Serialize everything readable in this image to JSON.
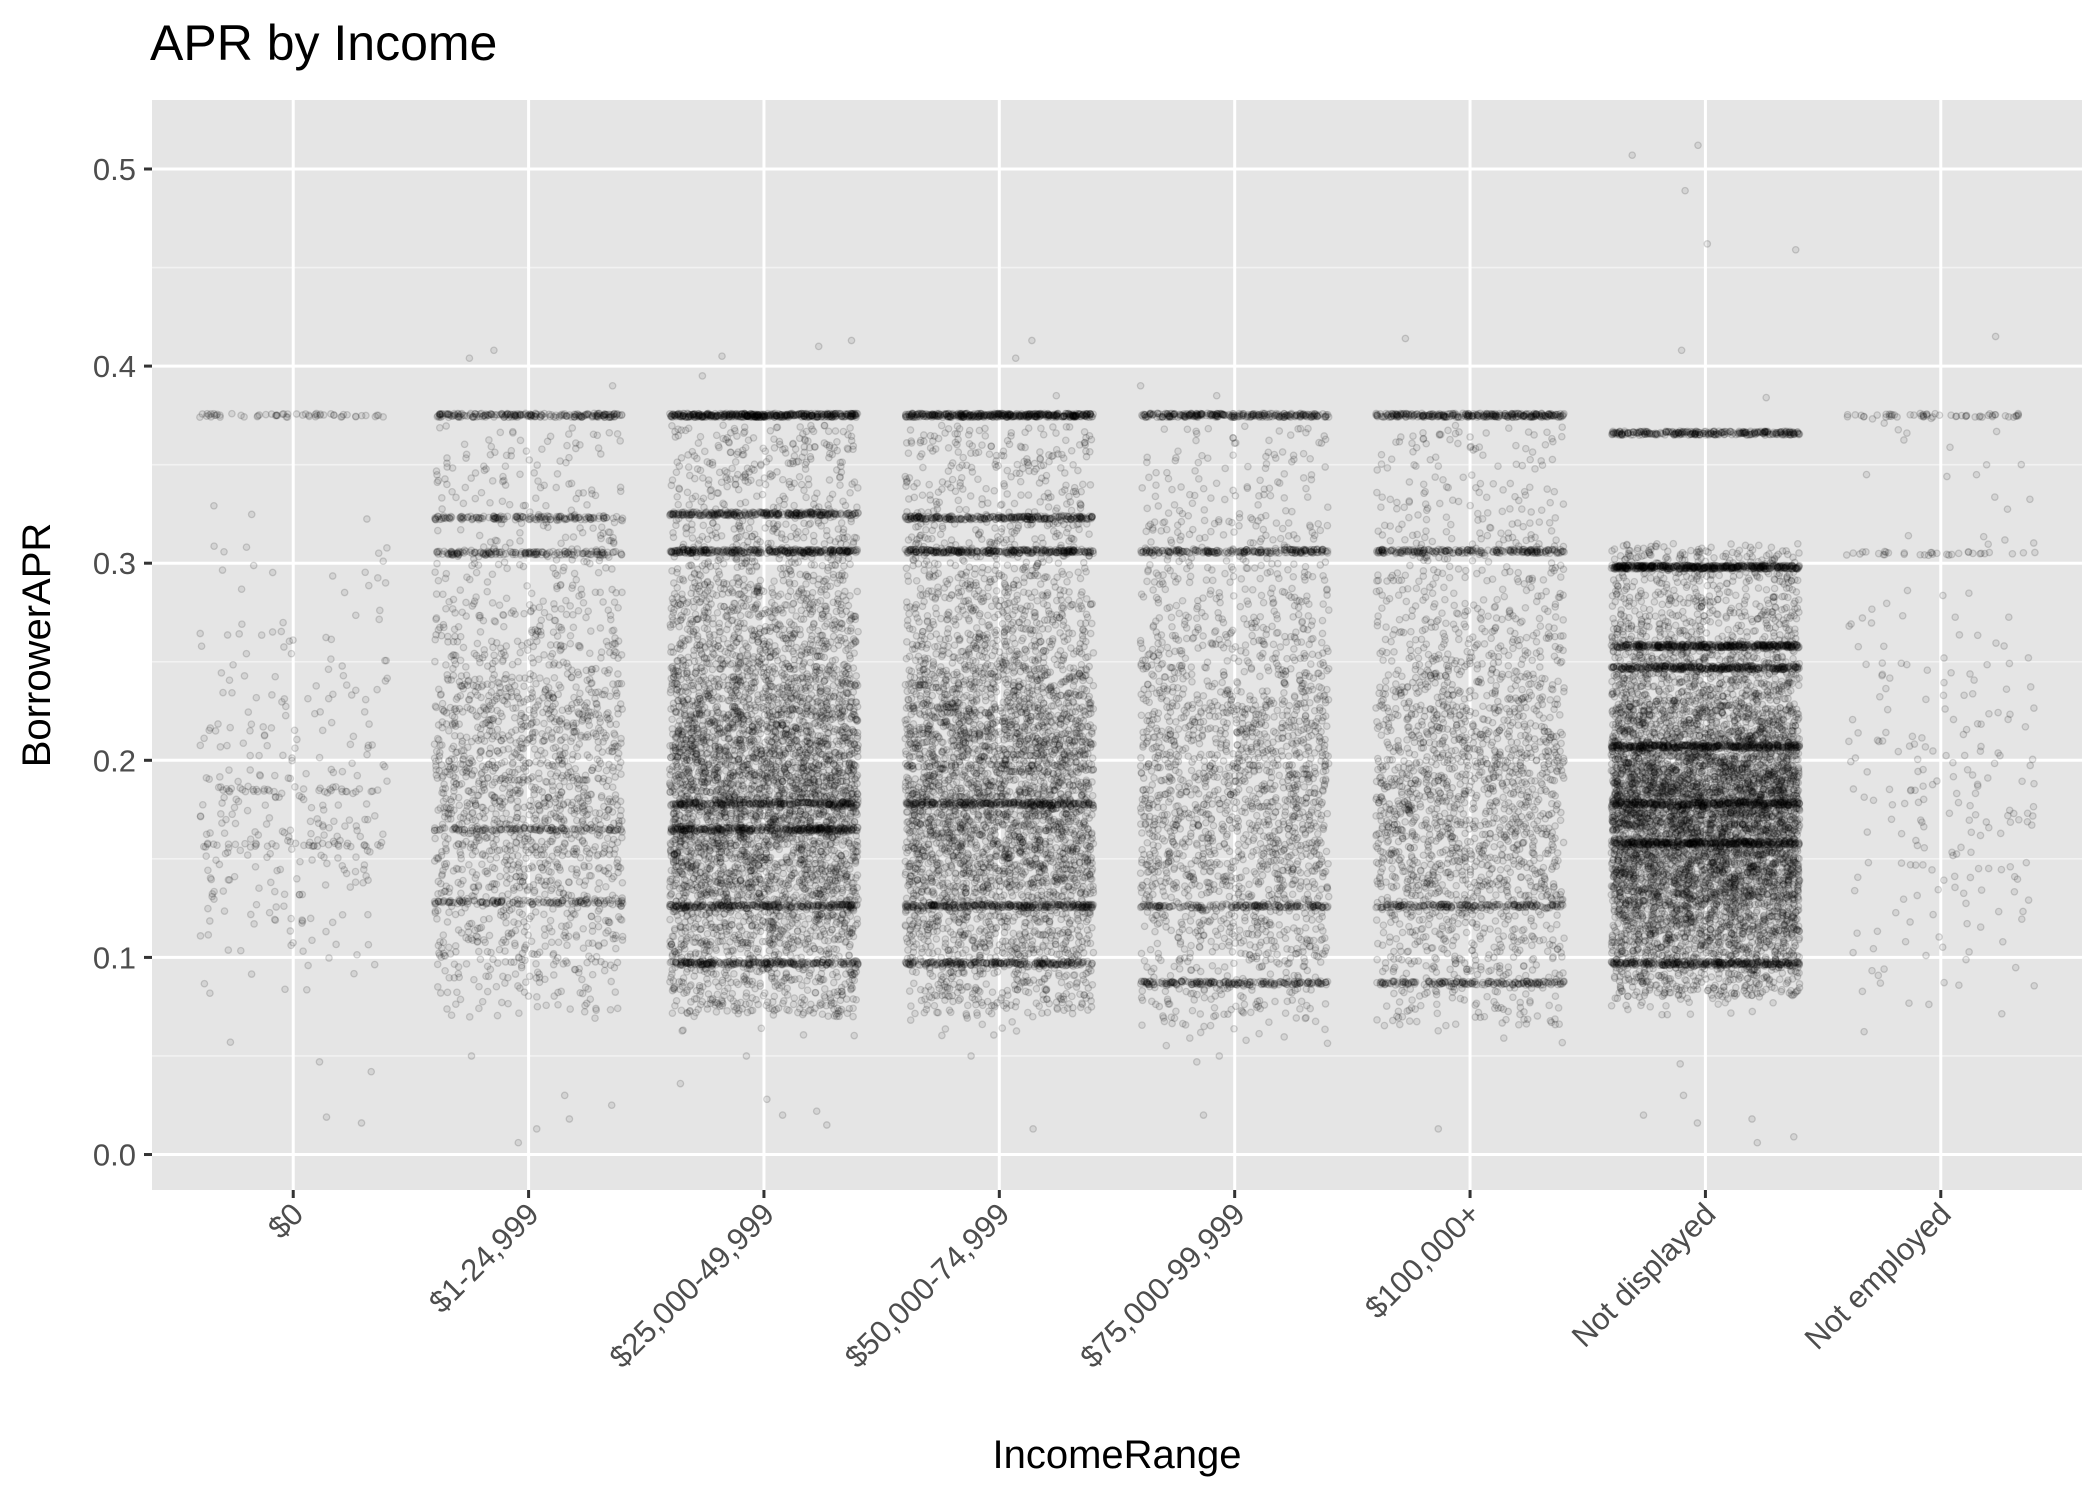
{
  "chart_data": {
    "type": "scatter",
    "title": "APR  by Income",
    "xlabel": "IncomeRange",
    "ylabel": "BorrowerAPR",
    "categories": [
      "$0",
      "$1-24,999",
      "$25,000-49,999",
      "$50,000-74,999",
      "$75,000-99,999",
      "$100,000+",
      "Not displayed",
      "Not employed"
    ],
    "ylim": [
      -0.018,
      0.535
    ],
    "yticks": [
      0.0,
      0.1,
      0.2,
      0.3,
      0.4,
      0.5
    ],
    "ytick_labels": [
      "0.0",
      "0.1",
      "0.2",
      "0.3",
      "0.4",
      "0.5"
    ],
    "grid": true,
    "jitter": "horizontal",
    "point_color": "#000000",
    "point_alpha": 0.15,
    "panel_background": "#e5e5e5",
    "grid_color": "#ffffff",
    "distributions": [
      {
        "category": "$0",
        "n": 420,
        "min": 0.015,
        "max": 0.375,
        "core": [
          0.08,
          0.33
        ],
        "bands": [
          0.375,
          0.157,
          0.185
        ],
        "outliers": [
          0.016,
          0.019,
          0.042,
          0.047,
          0.057
        ]
      },
      {
        "category": "$1-24,999",
        "n": 2600,
        "min": 0.006,
        "max": 0.41,
        "core": [
          0.07,
          0.37
        ],
        "bands": [
          0.375,
          0.305,
          0.323,
          0.165,
          0.128
        ],
        "outliers": [
          0.006,
          0.013,
          0.018,
          0.025,
          0.03,
          0.05,
          0.39,
          0.404,
          0.408
        ]
      },
      {
        "category": "$25,000-49,999",
        "n": 7000,
        "min": 0.015,
        "max": 0.415,
        "core": [
          0.07,
          0.37
        ],
        "bands": [
          0.375,
          0.306,
          0.325,
          0.178,
          0.165,
          0.126,
          0.097
        ],
        "outliers": [
          0.015,
          0.02,
          0.022,
          0.028,
          0.036,
          0.05,
          0.395,
          0.405,
          0.41,
          0.413
        ]
      },
      {
        "category": "$50,000-74,999",
        "n": 6000,
        "min": 0.013,
        "max": 0.415,
        "core": [
          0.07,
          0.37
        ],
        "bands": [
          0.375,
          0.306,
          0.323,
          0.178,
          0.126,
          0.097
        ],
        "outliers": [
          0.013,
          0.05,
          0.385,
          0.404,
          0.413
        ]
      },
      {
        "category": "$75,000-99,999",
        "n": 3000,
        "min": 0.02,
        "max": 0.39,
        "core": [
          0.065,
          0.37
        ],
        "bands": [
          0.375,
          0.306,
          0.087,
          0.126
        ],
        "outliers": [
          0.02,
          0.047,
          0.05,
          0.385,
          0.39
        ]
      },
      {
        "category": "$100,000+",
        "n": 3000,
        "min": 0.013,
        "max": 0.415,
        "core": [
          0.065,
          0.37
        ],
        "bands": [
          0.375,
          0.306,
          0.087,
          0.126
        ],
        "outliers": [
          0.013,
          0.414
        ]
      },
      {
        "category": "Not displayed",
        "n": 9500,
        "min": 0.006,
        "max": 0.512,
        "core": [
          0.08,
          0.31
        ],
        "bands": [
          0.298,
          0.258,
          0.247,
          0.207,
          0.178,
          0.158,
          0.097,
          0.366
        ],
        "outliers": [
          0.006,
          0.009,
          0.016,
          0.018,
          0.02,
          0.03,
          0.046,
          0.366,
          0.384,
          0.408,
          0.459,
          0.462,
          0.489,
          0.507,
          0.512
        ]
      },
      {
        "category": "Not employed",
        "n": 310,
        "min": 0.06,
        "max": 0.415,
        "core": [
          0.06,
          0.375
        ],
        "bands": [
          0.375,
          0.305
        ],
        "outliers": [
          0.35,
          0.366,
          0.415
        ]
      }
    ]
  }
}
